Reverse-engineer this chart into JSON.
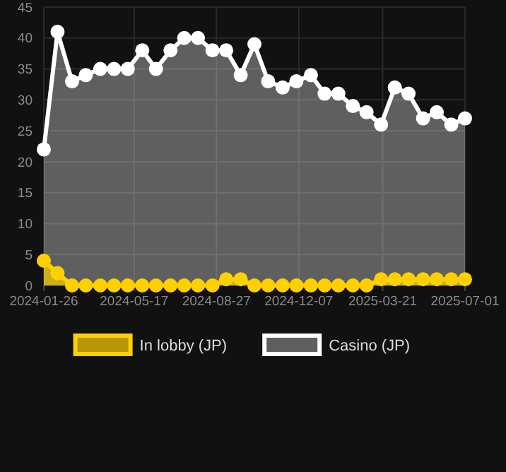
{
  "chart_data": {
    "type": "area",
    "x": [
      "2024-01-26",
      "2024-02-12",
      "2024-03-01",
      "2024-03-18",
      "2024-04-05",
      "2024-04-22",
      "2024-05-09",
      "2024-05-27",
      "2024-06-13",
      "2024-07-01",
      "2024-07-18",
      "2024-08-04",
      "2024-08-22",
      "2024-09-08",
      "2024-09-26",
      "2024-10-13",
      "2024-10-30",
      "2024-11-17",
      "2024-12-04",
      "2024-12-22",
      "2025-01-08",
      "2025-01-25",
      "2025-02-12",
      "2025-03-01",
      "2025-03-19",
      "2025-04-05",
      "2025-04-22",
      "2025-05-10",
      "2025-05-27",
      "2025-06-14",
      "2025-07-01"
    ],
    "series": [
      {
        "name": "In lobby (JP)",
        "color": "#ffd000",
        "values": [
          4,
          2,
          0,
          0,
          0,
          0,
          0,
          0,
          0,
          0,
          0,
          0,
          0,
          1,
          1,
          0,
          0,
          0,
          0,
          0,
          0,
          0,
          0,
          0,
          1,
          1,
          1,
          1,
          1,
          1,
          1
        ]
      },
      {
        "name": "Casino (JP)",
        "color": "#ffffff",
        "values": [
          22,
          41,
          33,
          34,
          35,
          35,
          35,
          38,
          35,
          38,
          40,
          40,
          38,
          38,
          34,
          39,
          33,
          32,
          33,
          34,
          31,
          31,
          29,
          28,
          26,
          32,
          31,
          27,
          28,
          26,
          27
        ]
      }
    ],
    "xlim": [
      "2024-01-26",
      "2025-07-01"
    ],
    "xticks": [
      "2024-01-26",
      "2024-05-17",
      "2024-08-27",
      "2024-12-07",
      "2025-03-21",
      "2025-07-01"
    ],
    "ylim": [
      0,
      45
    ],
    "yticks": [
      0,
      5,
      10,
      15,
      20,
      25,
      30,
      35,
      40,
      45
    ],
    "grid": true,
    "legend": "bottom",
    "marker": "circle"
  }
}
